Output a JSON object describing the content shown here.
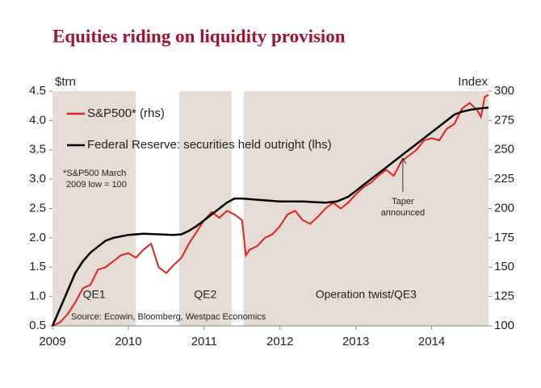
{
  "chart_data": {
    "type": "line",
    "title": "Equities riding on liquidity provision",
    "y_label": "$trn",
    "y2_label": "Index",
    "source": "Source: Ecowin, Bloomberg, Westpac Economics",
    "note": [
      "*S&P500 March",
      "2009  low = 100"
    ],
    "annotation": {
      "lines": [
        "Taper",
        "announced"
      ],
      "x": 2013.62,
      "y": 245
    },
    "xlim": [
      2009,
      2014.75
    ],
    "xticks": [
      2009,
      2010,
      2011,
      2012,
      2013,
      2014
    ],
    "ylim": [
      0.5,
      4.5
    ],
    "yticks": [
      {
        "value": 0.5,
        "label": "0.5"
      },
      {
        "value": 1,
        "label": "1.0"
      },
      {
        "value": 1.5,
        "label": "1.5"
      },
      {
        "value": 2,
        "label": "2.0"
      },
      {
        "value": 2.5,
        "label": "2.5"
      },
      {
        "value": 3,
        "label": "3.0"
      },
      {
        "value": 3.5,
        "label": "3.5"
      },
      {
        "value": 4,
        "label": "4.0"
      },
      {
        "value": 4.5,
        "label": "4.5"
      }
    ],
    "y2lim": [
      100,
      300
    ],
    "y2ticks": [
      100,
      125,
      150,
      175,
      200,
      225,
      250,
      275,
      300
    ],
    "shade_color": "#e5dcd3",
    "shaded_regions": [
      {
        "label": "QE1",
        "start": 2009,
        "end": 2010.1
      },
      {
        "label": "QE2",
        "start": 2010.67,
        "end": 2011.36
      },
      {
        "label": "Operation twist/QE3",
        "start": 2011.52,
        "end": 2014.75
      }
    ],
    "series": [
      {
        "name": "S&P500* (rhs)",
        "color": "#e3211c",
        "axis": "y2",
        "x": [
          2009,
          2009.1,
          2009.2,
          2009.3,
          2009.4,
          2009.5,
          2009.6,
          2009.7,
          2009.8,
          2009.9,
          2010,
          2010.1,
          2010.2,
          2010.3,
          2010.4,
          2010.5,
          2010.6,
          2010.7,
          2010.8,
          2010.9,
          2011,
          2011.1,
          2011.2,
          2011.3,
          2011.4,
          2011.5,
          2011.55,
          2011.6,
          2011.7,
          2011.8,
          2011.9,
          2012,
          2012.1,
          2012.2,
          2012.3,
          2012.4,
          2012.5,
          2012.6,
          2012.7,
          2012.8,
          2012.9,
          2013,
          2013.1,
          2013.2,
          2013.3,
          2013.4,
          2013.5,
          2013.6,
          2013.7,
          2013.8,
          2013.9,
          2014,
          2014.1,
          2014.2,
          2014.3,
          2014.4,
          2014.5,
          2014.6,
          2014.65,
          2014.7,
          2014.75
        ],
        "values": [
          100,
          103,
          110,
          120,
          132,
          135,
          148,
          150,
          155,
          160,
          162,
          158,
          165,
          170,
          150,
          145,
          152,
          158,
          170,
          180,
          190,
          197,
          192,
          198,
          195,
          190,
          160,
          165,
          168,
          175,
          178,
          185,
          195,
          198,
          190,
          187,
          193,
          200,
          205,
          200,
          205,
          212,
          218,
          222,
          228,
          233,
          228,
          240,
          245,
          250,
          258,
          260,
          258,
          268,
          272,
          285,
          290,
          284,
          278,
          295,
          297
        ]
      },
      {
        "name": "Federal Reserve: securities held outright (lhs)",
        "color": "#000000",
        "x": [
          2009,
          2009.1,
          2009.2,
          2009.3,
          2009.4,
          2009.5,
          2009.6,
          2009.7,
          2009.8,
          2010,
          2010.2,
          2010.4,
          2010.6,
          2010.7,
          2010.8,
          2010.9,
          2011,
          2011.1,
          2011.2,
          2011.3,
          2011.4,
          2011.5,
          2011.7,
          2012,
          2012.3,
          2012.6,
          2012.75,
          2012.9,
          2013,
          2013.1,
          2013.2,
          2013.3,
          2013.4,
          2013.5,
          2013.6,
          2013.7,
          2013.8,
          2013.9,
          2014,
          2014.1,
          2014.2,
          2014.3,
          2014.4,
          2014.5,
          2014.6,
          2014.75
        ],
        "values": [
          0.5,
          0.8,
          1.1,
          1.4,
          1.6,
          1.75,
          1.85,
          1.95,
          2.0,
          2.05,
          2.07,
          2.06,
          2.05,
          2.06,
          2.12,
          2.2,
          2.3,
          2.4,
          2.5,
          2.6,
          2.67,
          2.67,
          2.65,
          2.62,
          2.62,
          2.6,
          2.62,
          2.7,
          2.8,
          2.9,
          3.0,
          3.1,
          3.2,
          3.3,
          3.4,
          3.5,
          3.6,
          3.7,
          3.8,
          3.9,
          4.0,
          4.1,
          4.15,
          4.18,
          4.2,
          4.22
        ]
      }
    ]
  }
}
